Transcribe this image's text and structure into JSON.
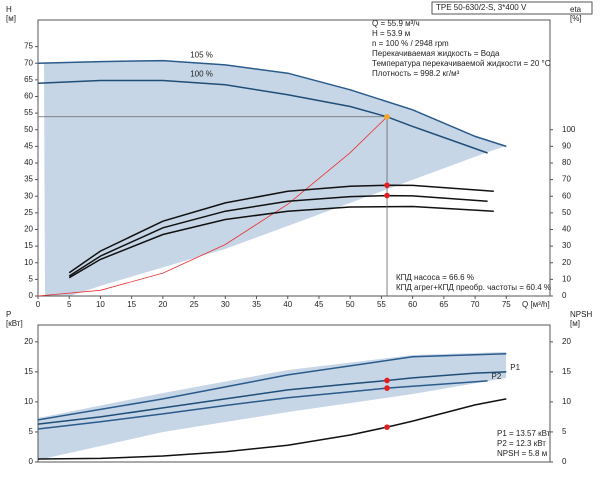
{
  "chart_data": [
    {
      "type": "line",
      "title": "TPE 50-630/2-S, 3*400 V",
      "ylabel": "H",
      "yunit": "[м]",
      "y2label": "eta",
      "y2unit": "[%]",
      "xlabel": "Q [м³/h]",
      "xlim": [
        0,
        82
      ],
      "ylim": [
        0,
        83
      ],
      "y2lim": [
        0,
        166
      ],
      "xticks": [
        0,
        5,
        10,
        15,
        20,
        25,
        30,
        35,
        40,
        45,
        50,
        55,
        60,
        65,
        70,
        75
      ],
      "yticks": [
        0,
        5,
        10,
        15,
        20,
        25,
        30,
        35,
        40,
        45,
        50,
        55,
        60,
        65,
        70,
        75
      ],
      "y2ticks": [
        0,
        10,
        20,
        30,
        40,
        50,
        60,
        70,
        80,
        90,
        100
      ],
      "annotations": [
        "Q = 55.9 м³/ч",
        "H = 53.9 м",
        "n = 100 % / 2948 rpm",
        "Перекачиваемая жидкость = Вода",
        "Температура перекачиваемой жидкости = 20 °C",
        "Плотность = 998.2 кг/м³"
      ],
      "notes": [
        "КПД насоса = 66.6 %",
        "КПД агрег+КПД преобр. частоты = 60.4 %"
      ],
      "series": [
        {
          "name": "105 %",
          "color": "#2a5b8c",
          "x": [
            0,
            10,
            20,
            30,
            40,
            50,
            60,
            70,
            75
          ],
          "values": [
            70,
            70.5,
            70.8,
            69.5,
            67,
            62,
            56,
            48,
            45
          ]
        },
        {
          "name": "100 %",
          "color": "#1f4e79",
          "x": [
            0,
            10,
            20,
            30,
            40,
            50,
            55.9,
            60,
            72
          ],
          "values": [
            64,
            64.8,
            64.8,
            63.5,
            60.5,
            57,
            53.9,
            51,
            43
          ]
        },
        {
          "color": "#e83030",
          "x": [
            0,
            10,
            20,
            30,
            40,
            50,
            55.9
          ],
          "values": [
            0,
            1.7,
            6.9,
            15.5,
            27.6,
            43.1,
            53.9
          ]
        },
        {
          "color": "#111111",
          "axis": "y2",
          "x": [
            5,
            10,
            20,
            30,
            40,
            50,
            55.9,
            60,
            73
          ],
          "values": [
            14,
            27,
            45,
            56,
            63,
            66,
            66.6,
            66.5,
            63
          ]
        },
        {
          "color": "#111111",
          "axis": "y2",
          "x": [
            5,
            10,
            20,
            30,
            40,
            50,
            55.9,
            60,
            72
          ],
          "values": [
            12,
            24,
            41,
            51,
            57,
            59.8,
            60.4,
            60.2,
            57
          ]
        },
        {
          "color": "#111111",
          "axis": "y2",
          "x": [
            5,
            10,
            20,
            30,
            40,
            50,
            60,
            73
          ],
          "values": [
            11,
            22,
            37,
            46,
            51,
            53.5,
            53.8,
            51
          ]
        }
      ],
      "markers": [
        {
          "x": 55.9,
          "y": 53.9,
          "color": "#f5a623",
          "guides": true
        },
        {
          "x": 55.9,
          "y": 66.6,
          "axis": "y2",
          "color": "#e02020"
        },
        {
          "x": 55.9,
          "y": 60.4,
          "axis": "y2",
          "color": "#e02020"
        }
      ]
    },
    {
      "type": "line",
      "ylabel": "P",
      "yunit": "[кВт]",
      "y2label": "NPSH",
      "y2unit": "[м]",
      "xlim": [
        0,
        82
      ],
      "ylim": [
        0,
        22.8
      ],
      "y2lim": [
        0,
        22.8
      ],
      "yticks": [
        0,
        5,
        10,
        15,
        20
      ],
      "y2ticks": [
        0,
        5,
        10,
        15,
        20
      ],
      "notes": [
        "P1 = 13.57 кВт",
        "P2 = 12.3 кВт",
        "NPSH = 5.8 м"
      ],
      "series": [
        {
          "color": "#2a5b8c",
          "x": [
            0,
            20,
            40,
            60,
            75
          ],
          "values": [
            7,
            10.5,
            14.5,
            17.5,
            18
          ]
        },
        {
          "name": "P1",
          "color": "#1f4e79",
          "x": [
            0,
            10,
            20,
            30,
            40,
            50,
            55.9,
            60,
            70,
            75
          ],
          "values": [
            6.3,
            7.5,
            9,
            10.5,
            12,
            13,
            13.57,
            14,
            14.8,
            15
          ]
        },
        {
          "name": "P2",
          "color": "#2a5b8c",
          "x": [
            0,
            10,
            20,
            30,
            40,
            50,
            55.9,
            60,
            72
          ],
          "values": [
            5.5,
            6.7,
            8,
            9.4,
            10.7,
            11.7,
            12.3,
            12.6,
            13.5
          ]
        },
        {
          "color": "#111111",
          "axis": "y2",
          "x": [
            0,
            10,
            20,
            30,
            40,
            50,
            55.9,
            60,
            70,
            75
          ],
          "values": [
            0.5,
            0.6,
            1,
            1.7,
            2.8,
            4.5,
            5.8,
            6.8,
            9.5,
            10.5
          ]
        }
      ],
      "markers": [
        {
          "x": 55.9,
          "y": 13.57,
          "color": "#e02020"
        },
        {
          "x": 55.9,
          "y": 12.3,
          "color": "#e02020"
        },
        {
          "x": 55.9,
          "y": 5.8,
          "axis": "y2",
          "color": "#e02020"
        }
      ]
    }
  ]
}
